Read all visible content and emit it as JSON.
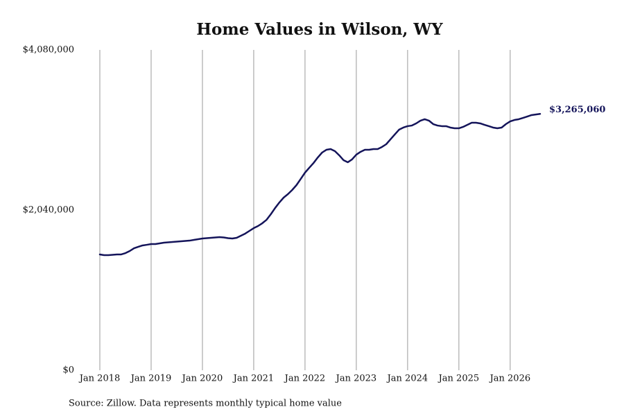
{
  "chart_data": {
    "type": "line",
    "title": "Home Values in Wilson, WY",
    "source": "Source: Zillow. Data represents monthly typical home value",
    "x": [
      "2018-01",
      "2018-02",
      "2018-03",
      "2018-04",
      "2018-05",
      "2018-06",
      "2018-07",
      "2018-08",
      "2018-09",
      "2018-10",
      "2018-11",
      "2018-12",
      "2019-01",
      "2019-02",
      "2019-03",
      "2019-04",
      "2019-05",
      "2019-06",
      "2019-07",
      "2019-08",
      "2019-09",
      "2019-10",
      "2019-11",
      "2019-12",
      "2020-01",
      "2020-02",
      "2020-03",
      "2020-04",
      "2020-05",
      "2020-06",
      "2020-07",
      "2020-08",
      "2020-09",
      "2020-10",
      "2020-11",
      "2020-12",
      "2021-01",
      "2021-02",
      "2021-03",
      "2021-04",
      "2021-05",
      "2021-06",
      "2021-07",
      "2021-08",
      "2021-09",
      "2021-10",
      "2021-11",
      "2021-12",
      "2022-01",
      "2022-02",
      "2022-03",
      "2022-04",
      "2022-05",
      "2022-06",
      "2022-07",
      "2022-08",
      "2022-09",
      "2022-10",
      "2022-11",
      "2022-12",
      "2023-01",
      "2023-02",
      "2023-03",
      "2023-04",
      "2023-05",
      "2023-06",
      "2023-07",
      "2023-08",
      "2023-09",
      "2023-10",
      "2023-11",
      "2023-12",
      "2024-01",
      "2024-02",
      "2024-03",
      "2024-04",
      "2024-05",
      "2024-06",
      "2024-07",
      "2024-08",
      "2024-09",
      "2024-10",
      "2024-11",
      "2024-12",
      "2025-01",
      "2025-02",
      "2025-03",
      "2025-04",
      "2025-05",
      "2025-06",
      "2025-07",
      "2025-08",
      "2025-09",
      "2025-10",
      "2025-11",
      "2025-12",
      "2026-01",
      "2026-02",
      "2026-03",
      "2026-04",
      "2026-05",
      "2026-06",
      "2026-07",
      "2026-08"
    ],
    "series": [
      {
        "color": "#14145a",
        "values": [
          1475000,
          1466000,
          1466000,
          1470000,
          1475000,
          1475000,
          1492000,
          1519000,
          1554000,
          1572000,
          1590000,
          1598000,
          1607000,
          1607000,
          1616000,
          1625000,
          1629000,
          1634000,
          1638000,
          1643000,
          1647000,
          1651000,
          1660000,
          1669000,
          1678000,
          1682000,
          1687000,
          1691000,
          1696000,
          1691000,
          1682000,
          1678000,
          1687000,
          1713000,
          1740000,
          1775000,
          1810000,
          1837000,
          1872000,
          1916000,
          1987000,
          2066000,
          2137000,
          2199000,
          2243000,
          2296000,
          2358000,
          2437000,
          2517000,
          2579000,
          2640000,
          2711000,
          2773000,
          2808000,
          2817000,
          2791000,
          2738000,
          2676000,
          2649000,
          2685000,
          2746000,
          2782000,
          2808000,
          2808000,
          2817000,
          2817000,
          2844000,
          2879000,
          2941000,
          3003000,
          3064000,
          3091000,
          3109000,
          3117000,
          3144000,
          3179000,
          3197000,
          3179000,
          3135000,
          3117000,
          3109000,
          3109000,
          3091000,
          3082000,
          3082000,
          3100000,
          3126000,
          3153000,
          3153000,
          3144000,
          3126000,
          3109000,
          3091000,
          3082000,
          3091000,
          3135000,
          3170000,
          3188000,
          3197000,
          3214000,
          3232000,
          3250000,
          3258000,
          3265060
        ],
        "value_labels": [
          null,
          null,
          null,
          null,
          null,
          null,
          null,
          null,
          null,
          null,
          null,
          null,
          null,
          null,
          null,
          null,
          null,
          null,
          null,
          null,
          null,
          null,
          null,
          null,
          null,
          null,
          null,
          null,
          null,
          null,
          null,
          null,
          null,
          null,
          null,
          null,
          null,
          null,
          null,
          null,
          null,
          null,
          null,
          null,
          null,
          null,
          null,
          null,
          null,
          null,
          null,
          null,
          null,
          null,
          null,
          null,
          null,
          null,
          null,
          null,
          null,
          null,
          null,
          null,
          null,
          null,
          null,
          null,
          null,
          null,
          null,
          null,
          null,
          null,
          null,
          null,
          null,
          null,
          null,
          null,
          null,
          null,
          null,
          null,
          null,
          null,
          null,
          null,
          null,
          null,
          null,
          null,
          null,
          null,
          null,
          null,
          null,
          null,
          null,
          null,
          null,
          null,
          null,
          "$3,265,060"
        ]
      }
    ],
    "xlim": [
      "2018-01",
      "2026-08"
    ],
    "xticks": [
      {
        "value": "2018-01",
        "label": "Jan 2018"
      },
      {
        "value": "2019-01",
        "label": "Jan 2019"
      },
      {
        "value": "2020-01",
        "label": "Jan 2020"
      },
      {
        "value": "2021-01",
        "label": "Jan 2021"
      },
      {
        "value": "2022-01",
        "label": "Jan 2022"
      },
      {
        "value": "2023-01",
        "label": "Jan 2023"
      },
      {
        "value": "2024-01",
        "label": "Jan 2024"
      },
      {
        "value": "2025-01",
        "label": "Jan 2025"
      },
      {
        "value": "2026-01",
        "label": "Jan 2026"
      }
    ],
    "ylim": [
      0,
      4080000
    ],
    "yticks": [
      {
        "value": 0,
        "label": "$0"
      },
      {
        "value": 2040000,
        "label": "$2,040,000"
      },
      {
        "value": 4080000,
        "label": "$4,080,000"
      }
    ],
    "grid": true
  }
}
